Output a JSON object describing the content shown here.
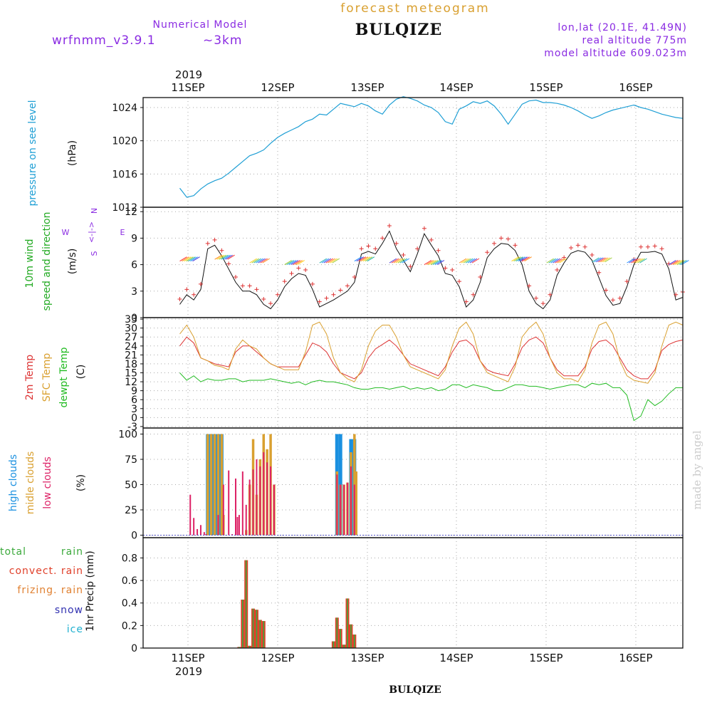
{
  "header": {
    "suptitle": "forecast meteogram",
    "title": "BULQIZE",
    "model_label": "Numerical Model",
    "model_name": "wrfnmm_v3.9.1",
    "model_res": "~3km",
    "coords": "lon,lat (20.1E, 41.49N)",
    "real_alt": "real altitude 775m",
    "model_alt": "model altitude  609.023m"
  },
  "footer": {
    "station": "BULQIZE"
  },
  "credit": "made by angel",
  "colors": {
    "pressure": "#1f9fd5",
    "wind_label": "#22aa22",
    "wind_marker": "#dd3333",
    "t2m": "#dd3333",
    "tsfc": "#d9a030",
    "dewpt": "#22bb22",
    "high": "#1a90e0",
    "mid": "#d9a030",
    "low": "#dd2266",
    "rain_total": "#3daa3d",
    "rain_conv": "#e0402a",
    "rain_frz": "#e08030",
    "snow": "#3030b0",
    "ice": "#20b0d0",
    "purple": "#8a2be2"
  },
  "time_axis": {
    "year": "2019",
    "dates": [
      "11SEP",
      "12SEP",
      "13SEP",
      "14SEP",
      "15SEP",
      "16SEP"
    ],
    "start_hour": 0,
    "end_hour": 144
  },
  "panels": {
    "pressure": {
      "label": "pressure on see level",
      "unit": "(hPa)",
      "ticks": [
        "1024",
        "1020",
        "1016",
        "1012"
      ]
    },
    "wind": {
      "label1": "10m wind",
      "label2": "speed and direction",
      "unit": "(m/s)",
      "ticks": [
        "12",
        "9",
        "6",
        "3",
        "0"
      ],
      "compass_w": "W",
      "compass_e": "E",
      "compass_n": "N",
      "compass_s": "S",
      "compass_mid": "<-|->"
    },
    "temp": {
      "label1": "2m Temp",
      "label2": "SFC Temp",
      "label3": "dewpt Temp",
      "unit": "(C)",
      "ticks": [
        "33",
        "30",
        "27",
        "24",
        "21",
        "18",
        "15",
        "12",
        "9",
        "6",
        "3",
        "0",
        "-3"
      ]
    },
    "clouds": {
      "label_high": "high   clouds",
      "label_mid": "midle clouds",
      "label_low": "low    clouds",
      "unit": "(%)",
      "ticks": [
        "100",
        "75",
        "50",
        "25",
        "0"
      ]
    },
    "precip": {
      "l1": "total",
      "l1b": "rain",
      "l2": "convect. rain",
      "l3": "frizing. rain",
      "l4": "snow",
      "l5": "ice",
      "unit": "1hr Precip (mm)",
      "ticks": [
        "0.8",
        "0.6",
        "0.4",
        "0.2",
        "0"
      ]
    }
  },
  "chart_data": [
    {
      "type": "line",
      "name": "pressure",
      "xlabel": "",
      "ylabel": "pressure on see level (hPa)",
      "ylim": [
        1012,
        1025.2
      ],
      "x": [
        0,
        2,
        4,
        6,
        8,
        10,
        12,
        14,
        16,
        18,
        20,
        22,
        24,
        26,
        28,
        30,
        32,
        34,
        36,
        38,
        40,
        42,
        44,
        46,
        48,
        50,
        52,
        54,
        56,
        58,
        60,
        62,
        64,
        66,
        68,
        70,
        72,
        74,
        76,
        78,
        80,
        82,
        84,
        86,
        88,
        90,
        92,
        94,
        96,
        98,
        100,
        102,
        104,
        106,
        108,
        110,
        112,
        114,
        116,
        118,
        120,
        122,
        124,
        126,
        128,
        130,
        132,
        134,
        136,
        138,
        140,
        142,
        144
      ],
      "values": [
        1014.3,
        1013.2,
        1013.4,
        1014.2,
        1014.8,
        1015.2,
        1015.5,
        1016.1,
        1016.8,
        1017.5,
        1018.2,
        1018.5,
        1018.9,
        1019.7,
        1020.4,
        1020.9,
        1021.3,
        1021.7,
        1022.3,
        1022.6,
        1023.2,
        1023.1,
        1023.8,
        1024.5,
        1024.3,
        1024.1,
        1024.5,
        1024.2,
        1023.6,
        1023.2,
        1024.3,
        1025.0,
        1025.3,
        1025.1,
        1024.8,
        1024.3,
        1024.0,
        1023.4,
        1022.3,
        1022.0,
        1023.8,
        1024.2,
        1024.7,
        1024.5,
        1024.8,
        1024.2,
        1023.2,
        1022.0,
        1023.2,
        1024.4,
        1024.8,
        1024.9,
        1024.6,
        1024.6,
        1024.5,
        1024.3,
        1024.0,
        1023.6,
        1023.1,
        1022.7,
        1023.0,
        1023.4,
        1023.7,
        1023.9,
        1024.1,
        1024.3,
        1024.0,
        1023.8,
        1023.5,
        1023.2,
        1023.0,
        1022.8,
        1022.7
      ]
    },
    {
      "type": "line",
      "name": "10m wind speed",
      "ylabel": "(m/s)",
      "ylim": [
        0,
        12.5
      ],
      "x": [
        0,
        2,
        4,
        6,
        8,
        10,
        12,
        14,
        16,
        18,
        20,
        22,
        24,
        26,
        28,
        30,
        32,
        34,
        36,
        38,
        40,
        42,
        44,
        46,
        48,
        50,
        52,
        54,
        56,
        58,
        60,
        62,
        64,
        66,
        68,
        70,
        72,
        74,
        76,
        78,
        80,
        82,
        84,
        86,
        88,
        90,
        92,
        94,
        96,
        98,
        100,
        102,
        104,
        106,
        108,
        110,
        112,
        114,
        116,
        118,
        120,
        122,
        124,
        126,
        128,
        130,
        132,
        134,
        136,
        138,
        140,
        142,
        144
      ],
      "values": [
        1.5,
        2.6,
        2.0,
        3.2,
        7.8,
        8.2,
        7.0,
        5.5,
        4.0,
        3.0,
        3.0,
        2.6,
        1.5,
        1.0,
        2.0,
        3.5,
        4.4,
        5.0,
        4.8,
        3.2,
        1.2,
        1.6,
        2.0,
        2.5,
        3.0,
        4.0,
        7.2,
        7.5,
        7.2,
        8.4,
        9.8,
        7.8,
        6.5,
        5.2,
        7.2,
        9.5,
        8.2,
        7.0,
        5.0,
        4.8,
        3.5,
        1.2,
        2.0,
        4.0,
        6.8,
        7.8,
        8.4,
        8.3,
        7.6,
        6.0,
        3.0,
        1.6,
        1.0,
        2.0,
        4.8,
        6.2,
        7.3,
        7.6,
        7.4,
        6.5,
        4.5,
        2.5,
        1.4,
        1.6,
        3.5,
        6.0,
        7.4,
        7.4,
        7.5,
        7.2,
        5.5,
        2.0,
        2.3
      ]
    },
    {
      "type": "line",
      "name": "temperature",
      "ylabel": "(C)",
      "ylim": [
        -3.5,
        33.5
      ],
      "x": [
        0,
        2,
        4,
        6,
        8,
        10,
        12,
        14,
        16,
        18,
        20,
        22,
        24,
        26,
        28,
        30,
        32,
        34,
        36,
        38,
        40,
        42,
        44,
        46,
        48,
        50,
        52,
        54,
        56,
        58,
        60,
        62,
        64,
        66,
        68,
        70,
        72,
        74,
        76,
        78,
        80,
        82,
        84,
        86,
        88,
        90,
        92,
        94,
        96,
        98,
        100,
        102,
        104,
        106,
        108,
        110,
        112,
        114,
        116,
        118,
        120,
        122,
        124,
        126,
        128,
        130,
        132,
        134,
        136,
        138,
        140,
        142,
        144
      ],
      "series": [
        {
          "name": "2m Temp",
          "values": [
            24,
            27,
            25,
            20,
            19,
            18,
            17.5,
            17,
            22,
            24,
            24,
            22,
            20,
            18,
            17,
            17,
            17,
            17,
            21,
            25,
            24,
            22,
            18,
            15,
            14,
            13,
            15,
            20,
            23,
            24.5,
            26,
            24,
            21,
            18,
            17,
            16,
            15,
            14,
            17,
            22,
            25.5,
            26,
            24,
            19,
            16,
            15,
            14.5,
            14,
            18,
            23.5,
            26,
            27,
            25,
            20,
            16,
            14,
            14,
            14,
            17,
            23,
            25.5,
            26,
            24,
            20,
            16,
            14,
            13,
            13,
            16,
            22.5,
            24.5,
            25.5,
            26
          ]
        },
        {
          "name": "SFC Temp",
          "values": [
            28,
            31,
            27,
            20,
            19,
            17.5,
            17,
            16,
            23,
            26,
            24,
            23,
            20,
            18,
            17,
            16,
            16,
            16,
            22,
            31,
            32,
            28,
            20,
            15,
            13,
            12,
            16,
            24,
            29,
            31,
            31,
            27,
            21,
            17,
            16,
            15,
            14,
            13,
            16,
            24,
            30,
            32,
            28,
            19,
            15,
            14,
            13,
            12,
            17,
            27,
            30,
            32,
            28,
            20,
            15,
            13,
            13,
            12,
            16,
            25,
            31,
            32,
            28,
            19,
            14,
            12.5,
            12,
            11.5,
            15,
            24,
            31,
            32,
            31
          ]
        },
        {
          "name": "dewpt Temp",
          "values": [
            15,
            12.5,
            14,
            12,
            13,
            12.5,
            12.5,
            13,
            13,
            12,
            12.5,
            12.5,
            12.5,
            13,
            12.5,
            12,
            11.5,
            12,
            11,
            12,
            12.5,
            12,
            12,
            11.5,
            11,
            10,
            9.5,
            9.5,
            10,
            10,
            9.5,
            10,
            10.5,
            9.5,
            10,
            9.5,
            10,
            9,
            9.5,
            11,
            11,
            10,
            11,
            10.5,
            10,
            9,
            9,
            10,
            11,
            11,
            10.5,
            10.5,
            10,
            9.5,
            10,
            10.5,
            11,
            11,
            10,
            11.5,
            11,
            11.5,
            10,
            10,
            7.5,
            -1,
            0.5,
            6,
            4,
            5.5,
            8,
            10,
            10
          ]
        }
      ]
    },
    {
      "type": "bar",
      "name": "clouds",
      "ylabel": "(%)",
      "ylim": [
        0,
        100
      ],
      "series": [
        {
          "name": "high",
          "x": [
            8,
            9,
            10,
            11,
            12,
            45,
            46,
            49,
            50
          ],
          "values": [
            100,
            100,
            100,
            100,
            100,
            100,
            100,
            95,
            95
          ]
        },
        {
          "name": "midle",
          "x": [
            8,
            9,
            10,
            11,
            12,
            12.5,
            19,
            20,
            21,
            22,
            23,
            24,
            25,
            26,
            27,
            45,
            46,
            47,
            48,
            49,
            50,
            50.5
          ],
          "values": [
            100,
            100,
            100,
            100,
            100,
            20,
            5,
            50,
            95,
            40,
            75,
            100,
            85,
            100,
            50,
            63,
            50,
            50,
            52,
            82,
            100,
            63
          ]
        },
        {
          "name": "low",
          "x": [
            3,
            4,
            5,
            6,
            7,
            7.5,
            11,
            12.5,
            14,
            15,
            16,
            16.5,
            17,
            18,
            19,
            20,
            21,
            22,
            23,
            24,
            25,
            26,
            27,
            45,
            46,
            47,
            48,
            49,
            50
          ],
          "values": [
            40,
            17,
            6,
            10,
            3,
            1,
            20,
            50,
            64,
            1,
            56,
            18,
            20,
            63,
            30,
            55,
            65,
            75,
            68,
            82,
            72,
            68,
            50,
            60,
            50,
            50,
            52,
            68,
            50
          ]
        }
      ]
    },
    {
      "type": "bar",
      "name": "1hr precip",
      "ylabel": "1hr Precip (mm)",
      "ylim": [
        0,
        0.98
      ],
      "series": [
        {
          "name": "total rain",
          "x": [
            17,
            18,
            19,
            20,
            21,
            22,
            23,
            24,
            44,
            45,
            46,
            47,
            48,
            49,
            50
          ],
          "values": [
            0.01,
            0.43,
            0.78,
            0.02,
            0.35,
            0.34,
            0.25,
            0.24,
            0.06,
            0.27,
            0.17,
            0.03,
            0.44,
            0.21,
            0.12
          ]
        }
      ]
    }
  ]
}
